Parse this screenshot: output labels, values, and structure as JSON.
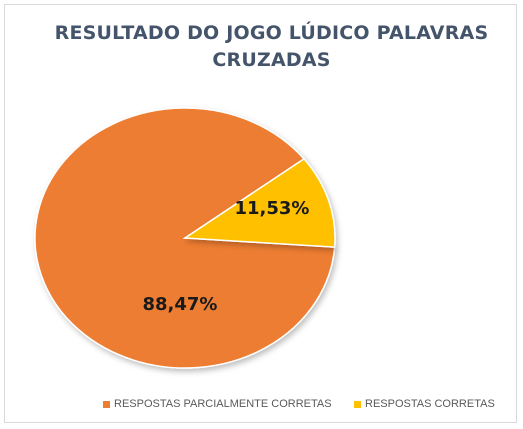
{
  "chart_data": {
    "type": "pie",
    "title_lines": [
      "RESULTADO DO JOGO LÚDICO PALAVRAS",
      "CRUZADAS"
    ],
    "slices": [
      {
        "label": "RESPOSTAS PARCIALMENTE CORRETAS",
        "value": 88.47,
        "display": "88,47%",
        "color": "#ed7d31"
      },
      {
        "label": "RESPOSTAS CORRETAS",
        "value": 11.53,
        "display": "11,53%",
        "color": "#ffc000"
      }
    ],
    "legend_position": "bottom"
  }
}
